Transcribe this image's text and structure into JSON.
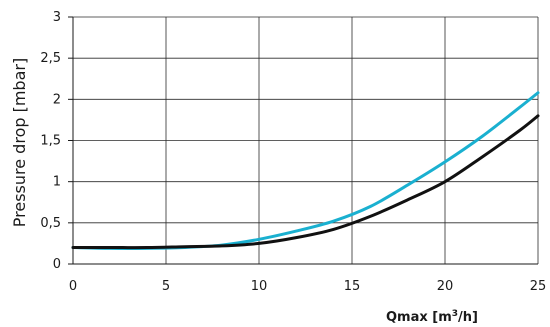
{
  "chart_data": {
    "type": "line",
    "xlabel": "Qmax [m³/h]",
    "ylabel": "Pressure drop [mbar]",
    "xlim": [
      0,
      25
    ],
    "ylim": [
      0,
      3
    ],
    "xticks": [
      0,
      5,
      10,
      15,
      20,
      25
    ],
    "xtick_labels": [
      "0",
      "5",
      "10",
      "15",
      "20",
      "25"
    ],
    "yticks": [
      0,
      0.5,
      1,
      1.5,
      2,
      2.5,
      3
    ],
    "ytick_labels": [
      "0",
      "0,5",
      "1",
      "1,5",
      "2",
      "2,5",
      "3"
    ],
    "grid": true,
    "legend": "none",
    "series": [
      {
        "color": "#1ab0d0",
        "x": [
          0,
          2,
          4,
          6,
          8,
          10,
          12,
          14,
          16,
          18,
          20,
          22,
          24,
          25
        ],
        "y": [
          0.2,
          0.19,
          0.19,
          0.2,
          0.23,
          0.3,
          0.4,
          0.52,
          0.7,
          0.96,
          1.24,
          1.55,
          1.9,
          2.08
        ]
      },
      {
        "color": "#111111",
        "x": [
          0,
          2,
          4,
          6,
          8,
          10,
          12,
          14,
          16,
          18,
          20,
          22,
          24,
          25
        ],
        "y": [
          0.2,
          0.2,
          0.2,
          0.21,
          0.22,
          0.25,
          0.32,
          0.42,
          0.58,
          0.78,
          1.0,
          1.3,
          1.62,
          1.8
        ]
      }
    ]
  }
}
